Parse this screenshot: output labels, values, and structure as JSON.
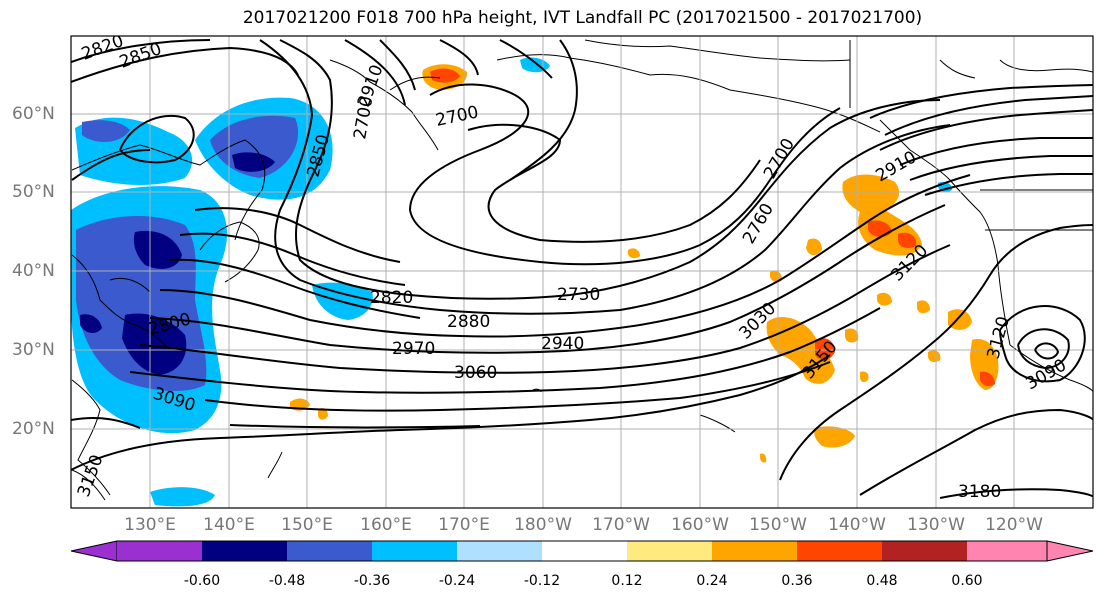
{
  "title": "2017021200 F018 700 hPa height, IVT Landfall PC (2017021500 - 2017021700)",
  "latitude_labels": [
    "60°N",
    "50°N",
    "40°N",
    "30°N",
    "20°N"
  ],
  "longitude_labels": [
    "130°E",
    "140°E",
    "150°E",
    "160°E",
    "170°E",
    "180°W",
    "170°W",
    "160°W",
    "150°W",
    "140°W",
    "130°W",
    "120°W"
  ],
  "contour_labels": [
    "2820",
    "2850",
    "2700",
    "2850",
    "2910",
    "2700",
    "2760",
    "2700",
    "2910",
    "3120",
    "2820",
    "2730",
    "2880",
    "2940",
    "2970",
    "3060",
    "3030",
    "3150",
    "3090",
    "3120",
    "3090",
    "3150",
    "3180",
    "2800"
  ],
  "colorbar": {
    "tick_labels": [
      "-0.60",
      "-0.48",
      "-0.36",
      "-0.24",
      "-0.12",
      "0.12",
      "0.24",
      "0.36",
      "0.48",
      "0.60"
    ],
    "colors": [
      "#9b30d0",
      "#000080",
      "#3a5acd",
      "#00bfff",
      "#b0e0ff",
      "#ffffff",
      "#ffea80",
      "#ffa500",
      "#ff4500",
      "#b22222",
      "#ff85b0"
    ]
  },
  "colors": {
    "contour": "#000000",
    "coastline": "#000000",
    "grid": "#b0b0b0",
    "axis_label": "#777777"
  }
}
